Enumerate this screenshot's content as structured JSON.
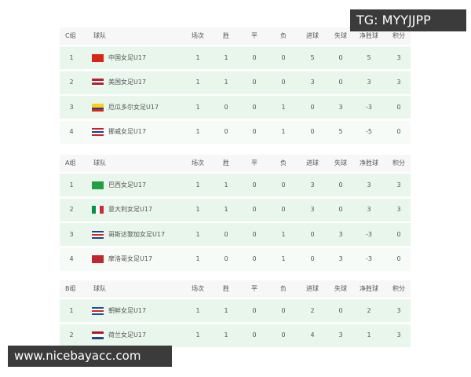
{
  "groups": [
    {
      "header": [
        "C组",
        "球队",
        "场次",
        "胜",
        "平",
        "负",
        "进球",
        "失球",
        "净胜球",
        "积分"
      ],
      "rows": [
        [
          1,
          "中国女足U17",
          1,
          1,
          0,
          0,
          5,
          0,
          5,
          3
        ],
        [
          2,
          "美国女足U17",
          1,
          1,
          0,
          0,
          3,
          0,
          3,
          3
        ],
        [
          3,
          "厄瓜多尔女足U17",
          1,
          0,
          0,
          1,
          0,
          3,
          -3,
          0
        ],
        [
          4,
          "挪威女足U17",
          1,
          0,
          0,
          1,
          0,
          5,
          -5,
          0
        ]
      ]
    },
    {
      "header": [
        "A组",
        "球队",
        "场次",
        "胜",
        "平",
        "负",
        "进球",
        "失球",
        "净胜球",
        "积分"
      ],
      "rows": [
        [
          1,
          "巴西女足U17",
          1,
          1,
          0,
          0,
          3,
          0,
          3,
          3
        ],
        [
          2,
          "意大利女足U17",
          1,
          1,
          0,
          0,
          3,
          0,
          3,
          3
        ],
        [
          3,
          "哥斯达黎加女足U17",
          1,
          0,
          0,
          1,
          0,
          3,
          -3,
          0
        ],
        [
          4,
          "摩洛哥女足U17",
          1,
          0,
          0,
          1,
          0,
          3,
          -3,
          0
        ]
      ]
    },
    {
      "header": [
        "B组",
        "球队",
        "场次",
        "胜",
        "平",
        "负",
        "进球",
        "失球",
        "净胜球",
        "积分"
      ],
      "rows": [
        [
          1,
          "朝鲜女足U17",
          1,
          1,
          0,
          0,
          2,
          0,
          2,
          3
        ],
        [
          2,
          "荷兰女足U17",
          1,
          1,
          0,
          0,
          4,
          3,
          1,
          3
        ]
      ]
    }
  ],
  "watermarks": [
    "TG: MYYJJPP",
    "www.nicebayacc.com"
  ]
}
